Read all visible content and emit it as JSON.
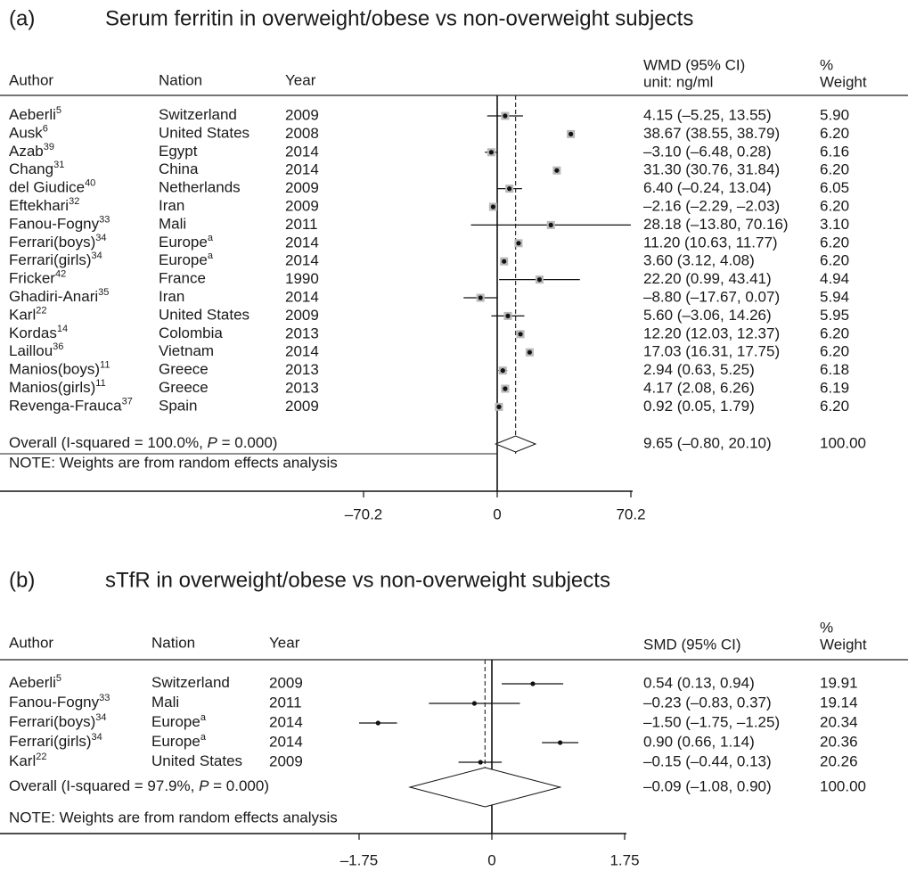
{
  "chart_data": [
    {
      "type": "forest",
      "panel": "(a)",
      "title": "Serum ferritin in overweight/obese vs non-overweight subjects",
      "columns": {
        "author": "Author",
        "nation": "Nation",
        "year": "Year",
        "effect": [
          "WMD (95% CI)",
          "unit: ng/ml"
        ],
        "weight": [
          "%",
          "Weight"
        ]
      },
      "weight_boxes": true,
      "studies": [
        {
          "author": "Aeberli",
          "ref": "5",
          "nation": "Switzerland",
          "year": 2009,
          "estimate": 4.15,
          "ci_low": -5.25,
          "ci_high": 13.55,
          "label": "4.15 (–5.25, 13.55)",
          "weight": "5.90"
        },
        {
          "author": "Ausk",
          "ref": "6",
          "nation": "United States",
          "year": 2008,
          "estimate": 38.67,
          "ci_low": 38.55,
          "ci_high": 38.79,
          "label": "38.67 (38.55, 38.79)",
          "weight": "6.20"
        },
        {
          "author": "Azab",
          "ref": "39",
          "nation": "Egypt",
          "year": 2014,
          "estimate": -3.1,
          "ci_low": -6.48,
          "ci_high": 0.28,
          "label": "–3.10 (–6.48, 0.28)",
          "weight": "6.16"
        },
        {
          "author": "Chang",
          "ref": "31",
          "nation": "China",
          "year": 2014,
          "estimate": 31.3,
          "ci_low": 30.76,
          "ci_high": 31.84,
          "label": "31.30 (30.76, 31.84)",
          "weight": "6.20"
        },
        {
          "author": "del Giudice",
          "ref": "40",
          "nation": "Netherlands",
          "year": 2009,
          "estimate": 6.4,
          "ci_low": -0.24,
          "ci_high": 13.04,
          "label": "6.40 (–0.24, 13.04)",
          "weight": "6.05"
        },
        {
          "author": "Eftekhari",
          "ref": "32",
          "nation": "Iran",
          "year": 2009,
          "estimate": -2.16,
          "ci_low": -2.29,
          "ci_high": -2.03,
          "label": "–2.16 (–2.29, –2.03)",
          "weight": "6.20"
        },
        {
          "author": "Fanou-Fogny",
          "ref": "33",
          "nation": "Mali",
          "year": 2011,
          "estimate": 28.18,
          "ci_low": -13.8,
          "ci_high": 70.16,
          "label": "28.18 (–13.80, 70.16)",
          "weight": "3.10"
        },
        {
          "author": "Ferrari(boys)",
          "ref": "34",
          "nation": "Europe",
          "nation_note": "a",
          "year": 2014,
          "estimate": 11.2,
          "ci_low": 10.63,
          "ci_high": 11.77,
          "label": "11.20 (10.63, 11.77)",
          "weight": "6.20"
        },
        {
          "author": "Ferrari(girls)",
          "ref": "34",
          "nation": "Europe",
          "nation_note": "a",
          "year": 2014,
          "estimate": 3.6,
          "ci_low": 3.12,
          "ci_high": 4.08,
          "label": "3.60 (3.12, 4.08)",
          "weight": "6.20"
        },
        {
          "author": "Fricker",
          "ref": "42",
          "nation": "France",
          "year": 1990,
          "estimate": 22.2,
          "ci_low": 0.99,
          "ci_high": 43.41,
          "label": "22.20 (0.99, 43.41)",
          "weight": "4.94"
        },
        {
          "author": "Ghadiri-Anari",
          "ref": "35",
          "nation": "Iran",
          "year": 2014,
          "estimate": -8.8,
          "ci_low": -17.67,
          "ci_high": 0.07,
          "label": "–8.80 (–17.67, 0.07)",
          "weight": "5.94"
        },
        {
          "author": "Karl",
          "ref": "22",
          "nation": "United States",
          "year": 2009,
          "estimate": 5.6,
          "ci_low": -3.06,
          "ci_high": 14.26,
          "label": "5.60 (–3.06, 14.26)",
          "weight": "5.95"
        },
        {
          "author": "Kordas",
          "ref": "14",
          "nation": "Colombia",
          "year": 2013,
          "estimate": 12.2,
          "ci_low": 12.03,
          "ci_high": 12.37,
          "label": "12.20 (12.03, 12.37)",
          "weight": "6.20"
        },
        {
          "author": "Laillou",
          "ref": "36",
          "nation": "Vietnam",
          "year": 2014,
          "estimate": 17.03,
          "ci_low": 16.31,
          "ci_high": 17.75,
          "label": "17.03 (16.31, 17.75)",
          "weight": "6.20"
        },
        {
          "author": "Manios(boys)",
          "ref": "11",
          "nation": "Greece",
          "year": 2013,
          "estimate": 2.94,
          "ci_low": 0.63,
          "ci_high": 5.25,
          "label": "2.94 (0.63, 5.25)",
          "weight": "6.18"
        },
        {
          "author": "Manios(girls)",
          "ref": "11",
          "nation": "Greece",
          "year": 2013,
          "estimate": 4.17,
          "ci_low": 2.08,
          "ci_high": 6.26,
          "label": "4.17 (2.08, 6.26)",
          "weight": "6.19"
        },
        {
          "author": "Revenga-Frauca",
          "ref": "37",
          "nation": "Spain",
          "year": 2009,
          "estimate": 0.92,
          "ci_low": 0.05,
          "ci_high": 1.79,
          "label": "0.92 (0.05, 1.79)",
          "weight": "6.20"
        }
      ],
      "overall": {
        "label_parts": [
          "Overall  (I-squared = 100.0%, ",
          "P",
          " = 0.000)"
        ],
        "estimate": 9.65,
        "ci_low": -0.8,
        "ci_high": 20.1,
        "label": "9.65 (–0.80, 20.10)",
        "weight": "100.00"
      },
      "note": "NOTE: Weights are from random effects analysis",
      "xlim": [
        -70.2,
        70.2
      ],
      "xticks": [
        {
          "value": -70.2,
          "label": "–70.2"
        },
        0,
        70.2
      ]
    },
    {
      "type": "forest",
      "panel": "(b)",
      "title": "sTfR in overweight/obese vs non-overweight subjects",
      "columns": {
        "author": "Author",
        "nation": "Nation",
        "year": "Year",
        "effect": [
          "SMD (95% CI)"
        ],
        "weight": [
          "%",
          "Weight"
        ]
      },
      "weight_boxes": false,
      "studies": [
        {
          "author": "Aeberli",
          "ref": "5",
          "nation": "Switzerland",
          "year": 2009,
          "estimate": 0.54,
          "ci_low": 0.13,
          "ci_high": 0.94,
          "label": "0.54 (0.13, 0.94)",
          "weight": "19.91"
        },
        {
          "author": "Fanou-Fogny",
          "ref": "33",
          "nation": "Mali",
          "year": 2011,
          "estimate": -0.23,
          "ci_low": -0.83,
          "ci_high": 0.37,
          "label": "–0.23 (–0.83, 0.37)",
          "weight": "19.14"
        },
        {
          "author": "Ferrari(boys)",
          "ref": "34",
          "nation": "Europe",
          "nation_note": "a",
          "year": 2014,
          "estimate": -1.5,
          "ci_low": -1.75,
          "ci_high": -1.25,
          "label": "–1.50 (–1.75, –1.25)",
          "weight": "20.34"
        },
        {
          "author": "Ferrari(girls)",
          "ref": "34",
          "nation": "Europe",
          "nation_note": "a",
          "year": 2014,
          "estimate": 0.9,
          "ci_low": 0.66,
          "ci_high": 1.14,
          "label": "0.90 (0.66, 1.14)",
          "weight": "20.36"
        },
        {
          "author": "Karl",
          "ref": "22",
          "nation": "United States",
          "year": 2009,
          "estimate": -0.15,
          "ci_low": -0.44,
          "ci_high": 0.13,
          "label": "–0.15 (–0.44, 0.13)",
          "weight": "20.26"
        }
      ],
      "overall": {
        "label_parts": [
          "Overall  (I-squared = 97.9%, ",
          "P",
          " = 0.000)"
        ],
        "estimate": -0.09,
        "ci_low": -1.08,
        "ci_high": 0.9,
        "label": "–0.09 (–1.08, 0.90)",
        "weight": "100.00"
      },
      "note": "NOTE: Weights are from random effects analysis",
      "xlim": [
        -1.75,
        1.75
      ],
      "xticks": [
        {
          "value": -1.75,
          "label": "–1.75"
        },
        0,
        1.75
      ]
    }
  ]
}
